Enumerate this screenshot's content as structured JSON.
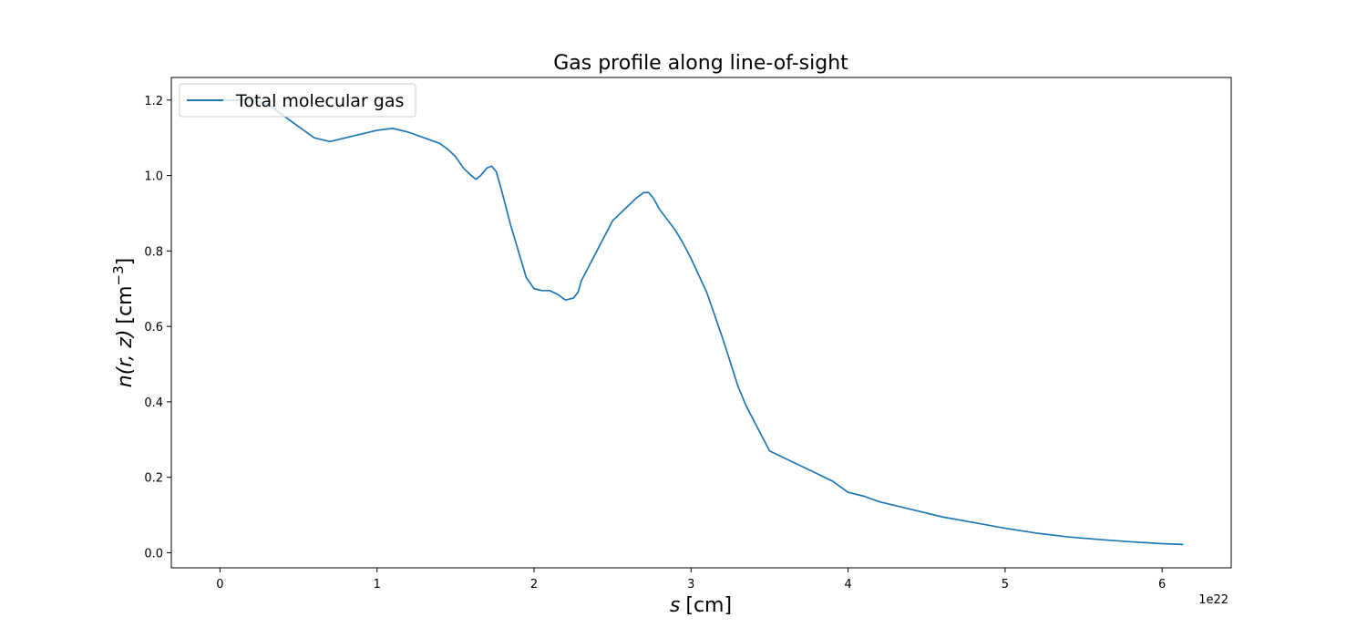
{
  "chart_data": {
    "type": "line",
    "title": "Gas profile along line-of-sight",
    "xlabel_var": "s",
    "xlabel_unit": "[cm]",
    "ylabel_var": "n(r, z)",
    "ylabel_unit_base": "[cm",
    "ylabel_unit_exp": "−3",
    "ylabel_unit_close": "]",
    "x_offset_label": "1e22",
    "xlim": [
      -0.31,
      6.44
    ],
    "ylim": [
      -0.04,
      1.26
    ],
    "x_ticks": [
      0,
      1,
      2,
      3,
      4,
      5,
      6
    ],
    "x_tick_labels": [
      "0",
      "1",
      "2",
      "3",
      "4",
      "5",
      "6"
    ],
    "y_ticks": [
      0.0,
      0.2,
      0.4,
      0.6,
      0.8,
      1.0,
      1.2
    ],
    "y_tick_labels": [
      "0.0",
      "0.2",
      "0.4",
      "0.6",
      "0.8",
      "1.0",
      "1.2"
    ],
    "grid": false,
    "legend_position": "upper-left",
    "series": [
      {
        "name": "Total molecular gas",
        "color": "#1f77b4",
        "x": [
          0,
          0.1,
          0.2,
          0.3,
          0.4,
          0.5,
          0.6,
          0.7,
          0.8,
          0.9,
          1.0,
          1.1,
          1.2,
          1.3,
          1.4,
          1.45,
          1.5,
          1.55,
          1.6,
          1.63,
          1.66,
          1.7,
          1.73,
          1.76,
          1.8,
          1.85,
          1.9,
          1.95,
          2.0,
          2.05,
          2.1,
          2.15,
          2.2,
          2.25,
          2.28,
          2.3,
          2.4,
          2.5,
          2.55,
          2.6,
          2.65,
          2.7,
          2.73,
          2.76,
          2.8,
          2.9,
          2.95,
          3.0,
          3.1,
          3.2,
          3.3,
          3.35,
          3.4,
          3.5,
          3.55,
          3.6,
          3.7,
          3.8,
          3.9,
          4.0,
          4.1,
          4.2,
          4.4,
          4.6,
          4.8,
          5.0,
          5.2,
          5.4,
          5.6,
          5.8,
          6.0,
          6.13
        ],
        "y": [
          1.2,
          1.2,
          1.2,
          1.19,
          1.16,
          1.13,
          1.1,
          1.09,
          1.1,
          1.11,
          1.12,
          1.125,
          1.115,
          1.1,
          1.085,
          1.07,
          1.05,
          1.02,
          1.0,
          0.99,
          1.0,
          1.02,
          1.025,
          1.01,
          0.95,
          0.87,
          0.8,
          0.73,
          0.7,
          0.695,
          0.695,
          0.685,
          0.67,
          0.675,
          0.69,
          0.72,
          0.8,
          0.88,
          0.9,
          0.92,
          0.94,
          0.955,
          0.955,
          0.94,
          0.91,
          0.855,
          0.82,
          0.78,
          0.69,
          0.57,
          0.44,
          0.39,
          0.35,
          0.27,
          0.26,
          0.25,
          0.23,
          0.21,
          0.19,
          0.16,
          0.15,
          0.135,
          0.115,
          0.095,
          0.08,
          0.065,
          0.052,
          0.042,
          0.035,
          0.029,
          0.024,
          0.022
        ]
      }
    ]
  }
}
